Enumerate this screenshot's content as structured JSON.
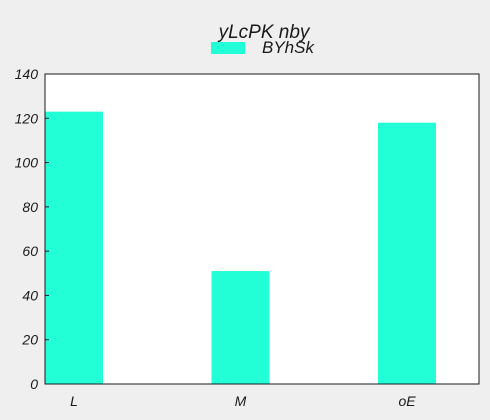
{
  "chart_data": {
    "type": "bar",
    "title": "yLcPK nby",
    "categories": [
      "L",
      "M",
      "oE"
    ],
    "series": [
      {
        "name": "BYhSk",
        "values": [
          123,
          51,
          118
        ],
        "color": "#22ffd7"
      }
    ],
    "xlabel": "",
    "ylabel": "",
    "ylim": [
      0,
      140
    ],
    "yticks": [
      0,
      20,
      40,
      60,
      80,
      100,
      120,
      140
    ],
    "grid": false,
    "legend": "top-center"
  }
}
